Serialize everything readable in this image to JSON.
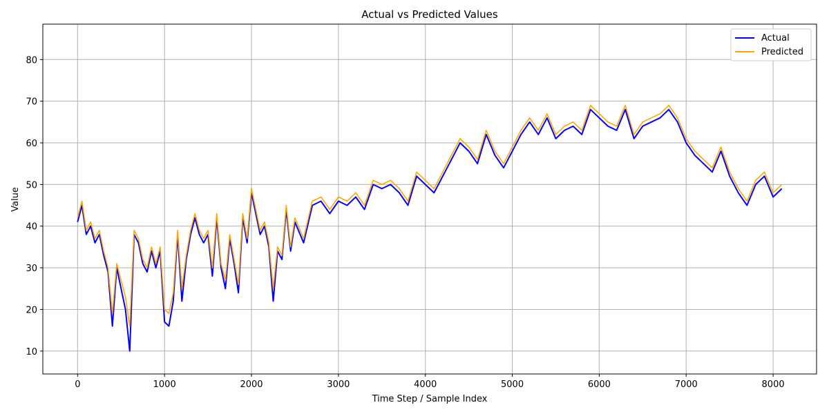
{
  "chart_data": {
    "type": "line",
    "title": "Actual vs Predicted Values",
    "xlabel": "Time Step / Sample Index",
    "ylabel": "Value",
    "xlim": [
      -400,
      8500
    ],
    "ylim": [
      4.5,
      88.5
    ],
    "xticks": [
      0,
      1000,
      2000,
      3000,
      4000,
      5000,
      6000,
      7000,
      8000
    ],
    "xtick_labels": [
      "0",
      "1000",
      "2000",
      "3000",
      "4000",
      "5000",
      "6000",
      "7000",
      "8000"
    ],
    "yticks": [
      10,
      20,
      30,
      40,
      50,
      60,
      70,
      80
    ],
    "ytick_labels": [
      "10",
      "20",
      "30",
      "40",
      "50",
      "60",
      "70",
      "80"
    ],
    "grid": true,
    "legend_position": "top-right",
    "series": [
      {
        "name": "Actual",
        "color": "#0000ff",
        "x": [
          0,
          50,
          100,
          150,
          200,
          250,
          300,
          350,
          400,
          450,
          500,
          550,
          600,
          650,
          700,
          750,
          800,
          850,
          900,
          950,
          1000,
          1050,
          1100,
          1150,
          1200,
          1250,
          1300,
          1350,
          1400,
          1450,
          1500,
          1550,
          1600,
          1650,
          1700,
          1750,
          1800,
          1850,
          1900,
          1950,
          2000,
          2050,
          2100,
          2150,
          2200,
          2250,
          2300,
          2350,
          2400,
          2450,
          2500,
          2600,
          2700,
          2800,
          2900,
          3000,
          3100,
          3200,
          3300,
          3400,
          3500,
          3600,
          3700,
          3800,
          3900,
          4000,
          4100,
          4200,
          4300,
          4400,
          4500,
          4600,
          4700,
          4800,
          4900,
          5000,
          5100,
          5200,
          5300,
          5400,
          5500,
          5600,
          5700,
          5800,
          5900,
          6000,
          6100,
          6200,
          6300,
          6400,
          6500,
          6600,
          6700,
          6800,
          6900,
          7000,
          7100,
          7200,
          7300,
          7400,
          7500,
          7600,
          7700,
          7800,
          7900,
          8000,
          8100
        ],
        "values": [
          41,
          45,
          38,
          40,
          36,
          38,
          33,
          29,
          16,
          30,
          25,
          20,
          10,
          38,
          36,
          31,
          29,
          34,
          30,
          34,
          17,
          16,
          22,
          38,
          22,
          32,
          38,
          42,
          38,
          36,
          38,
          28,
          42,
          30,
          25,
          37,
          31,
          24,
          42,
          36,
          48,
          43,
          38,
          40,
          35,
          22,
          34,
          32,
          44,
          34,
          41,
          36,
          45,
          46,
          43,
          46,
          45,
          47,
          44,
          50,
          49,
          50,
          48,
          45,
          52,
          50,
          48,
          52,
          56,
          60,
          58,
          55,
          62,
          57,
          54,
          58,
          62,
          65,
          62,
          66,
          61,
          63,
          64,
          62,
          68,
          66,
          64,
          63,
          68,
          61,
          64,
          65,
          66,
          68,
          65,
          60,
          57,
          55,
          53,
          58,
          52,
          48,
          45,
          50,
          52,
          47,
          49
        ]
      },
      {
        "name": "Predicted",
        "color": "#ffa500",
        "x": [
          0,
          50,
          100,
          150,
          200,
          250,
          300,
          350,
          400,
          450,
          500,
          550,
          600,
          650,
          700,
          750,
          800,
          850,
          900,
          950,
          1000,
          1050,
          1100,
          1150,
          1200,
          1250,
          1300,
          1350,
          1400,
          1450,
          1500,
          1550,
          1600,
          1650,
          1700,
          1750,
          1800,
          1850,
          1900,
          1950,
          2000,
          2050,
          2100,
          2150,
          2200,
          2250,
          2300,
          2350,
          2400,
          2450,
          2500,
          2600,
          2700,
          2800,
          2900,
          3000,
          3100,
          3200,
          3300,
          3400,
          3500,
          3600,
          3700,
          3800,
          3900,
          4000,
          4100,
          4200,
          4300,
          4400,
          4500,
          4600,
          4700,
          4800,
          4900,
          5000,
          5100,
          5200,
          5300,
          5400,
          5500,
          5600,
          5700,
          5800,
          5900,
          6000,
          6100,
          6200,
          6300,
          6400,
          6500,
          6600,
          6700,
          6800,
          6900,
          7000,
          7100,
          7200,
          7300,
          7400,
          7500,
          7600,
          7700,
          7800,
          7900,
          8000,
          8100
        ],
        "values": [
          42,
          46,
          39,
          41,
          37,
          39,
          34,
          30,
          19,
          31,
          27,
          23,
          16,
          39,
          37,
          32,
          30,
          35,
          31,
          35,
          20,
          19,
          24,
          39,
          25,
          33,
          39,
          43,
          39,
          37,
          39,
          30,
          43,
          31,
          27,
          38,
          32,
          26,
          43,
          37,
          49,
          44,
          39,
          41,
          36,
          25,
          35,
          33,
          45,
          35,
          42,
          37,
          46,
          47,
          44,
          47,
          46,
          48,
          45,
          51,
          50,
          51,
          49,
          46,
          53,
          51,
          49,
          53,
          57,
          61,
          59,
          56,
          63,
          58,
          55,
          59,
          63,
          66,
          63,
          67,
          62,
          64,
          65,
          63,
          69,
          67,
          65,
          64,
          69,
          62,
          65,
          66,
          67,
          69,
          66,
          61,
          58,
          56,
          54,
          59,
          53,
          49,
          46,
          51,
          53,
          48,
          50
        ]
      }
    ]
  }
}
